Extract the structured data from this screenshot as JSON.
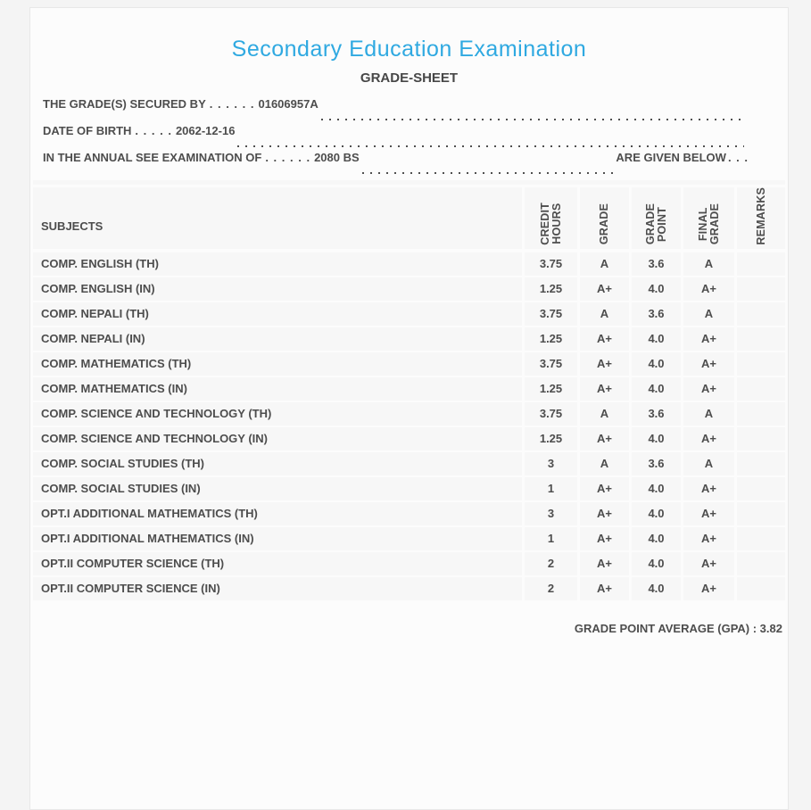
{
  "page": {
    "title": "Secondary Education Examination",
    "subtitle": "GRADE-SHEET",
    "accent_color": "#2fa9e1",
    "text_color": "#4d4d4d"
  },
  "student_info": {
    "lines": [
      {
        "label": "THE GRADE(S) SECURED BY",
        "leader": ". . . . . .",
        "value": "01606957A",
        "suffix": "",
        "trailing": ""
      },
      {
        "label": "DATE OF BIRTH",
        "leader": ". . . . .",
        "value": "2062-12-16",
        "suffix": "",
        "trailing": ""
      },
      {
        "label": "IN THE ANNUAL SEE EXAMINATION OF",
        "leader": ". . . . . .",
        "value": "2080 BS",
        "suffix": "ARE GIVEN BELOW",
        "trailing": ". . ."
      }
    ]
  },
  "table": {
    "columns": [
      "SUBJECTS",
      "CREDIT\nHOURS",
      "GRADE",
      "GRADE\nPOINT",
      "FINAL\nGRADE",
      "REMARKS"
    ],
    "rows": [
      {
        "subject": "COMP. ENGLISH (TH)",
        "credit_hours": "3.75",
        "grade": "A",
        "grade_point": "3.6",
        "final_grade": "A",
        "remarks": ""
      },
      {
        "subject": "COMP. ENGLISH (IN)",
        "credit_hours": "1.25",
        "grade": "A+",
        "grade_point": "4.0",
        "final_grade": "A+",
        "remarks": ""
      },
      {
        "subject": "COMP. NEPALI (TH)",
        "credit_hours": "3.75",
        "grade": "A",
        "grade_point": "3.6",
        "final_grade": "A",
        "remarks": ""
      },
      {
        "subject": "COMP. NEPALI (IN)",
        "credit_hours": "1.25",
        "grade": "A+",
        "grade_point": "4.0",
        "final_grade": "A+",
        "remarks": ""
      },
      {
        "subject": "COMP. MATHEMATICS (TH)",
        "credit_hours": "3.75",
        "grade": "A+",
        "grade_point": "4.0",
        "final_grade": "A+",
        "remarks": ""
      },
      {
        "subject": "COMP. MATHEMATICS (IN)",
        "credit_hours": "1.25",
        "grade": "A+",
        "grade_point": "4.0",
        "final_grade": "A+",
        "remarks": ""
      },
      {
        "subject": "COMP. SCIENCE AND TECHNOLOGY (TH)",
        "credit_hours": "3.75",
        "grade": "A",
        "grade_point": "3.6",
        "final_grade": "A",
        "remarks": ""
      },
      {
        "subject": "COMP. SCIENCE AND TECHNOLOGY (IN)",
        "credit_hours": "1.25",
        "grade": "A+",
        "grade_point": "4.0",
        "final_grade": "A+",
        "remarks": ""
      },
      {
        "subject": "COMP. SOCIAL STUDIES (TH)",
        "credit_hours": "3",
        "grade": "A",
        "grade_point": "3.6",
        "final_grade": "A",
        "remarks": ""
      },
      {
        "subject": "COMP. SOCIAL STUDIES (IN)",
        "credit_hours": "1",
        "grade": "A+",
        "grade_point": "4.0",
        "final_grade": "A+",
        "remarks": ""
      },
      {
        "subject": "OPT.I ADDITIONAL MATHEMATICS (TH)",
        "credit_hours": "3",
        "grade": "A+",
        "grade_point": "4.0",
        "final_grade": "A+",
        "remarks": ""
      },
      {
        "subject": "OPT.I ADDITIONAL MATHEMATICS (IN)",
        "credit_hours": "1",
        "grade": "A+",
        "grade_point": "4.0",
        "final_grade": "A+",
        "remarks": ""
      },
      {
        "subject": "OPT.II COMPUTER SCIENCE (TH)",
        "credit_hours": "2",
        "grade": "A+",
        "grade_point": "4.0",
        "final_grade": "A+",
        "remarks": ""
      },
      {
        "subject": "OPT.II COMPUTER SCIENCE (IN)",
        "credit_hours": "2",
        "grade": "A+",
        "grade_point": "4.0",
        "final_grade": "A+",
        "remarks": ""
      }
    ]
  },
  "footer": {
    "gpa_text": "GRADE POINT AVERAGE (GPA) : 3.82"
  }
}
